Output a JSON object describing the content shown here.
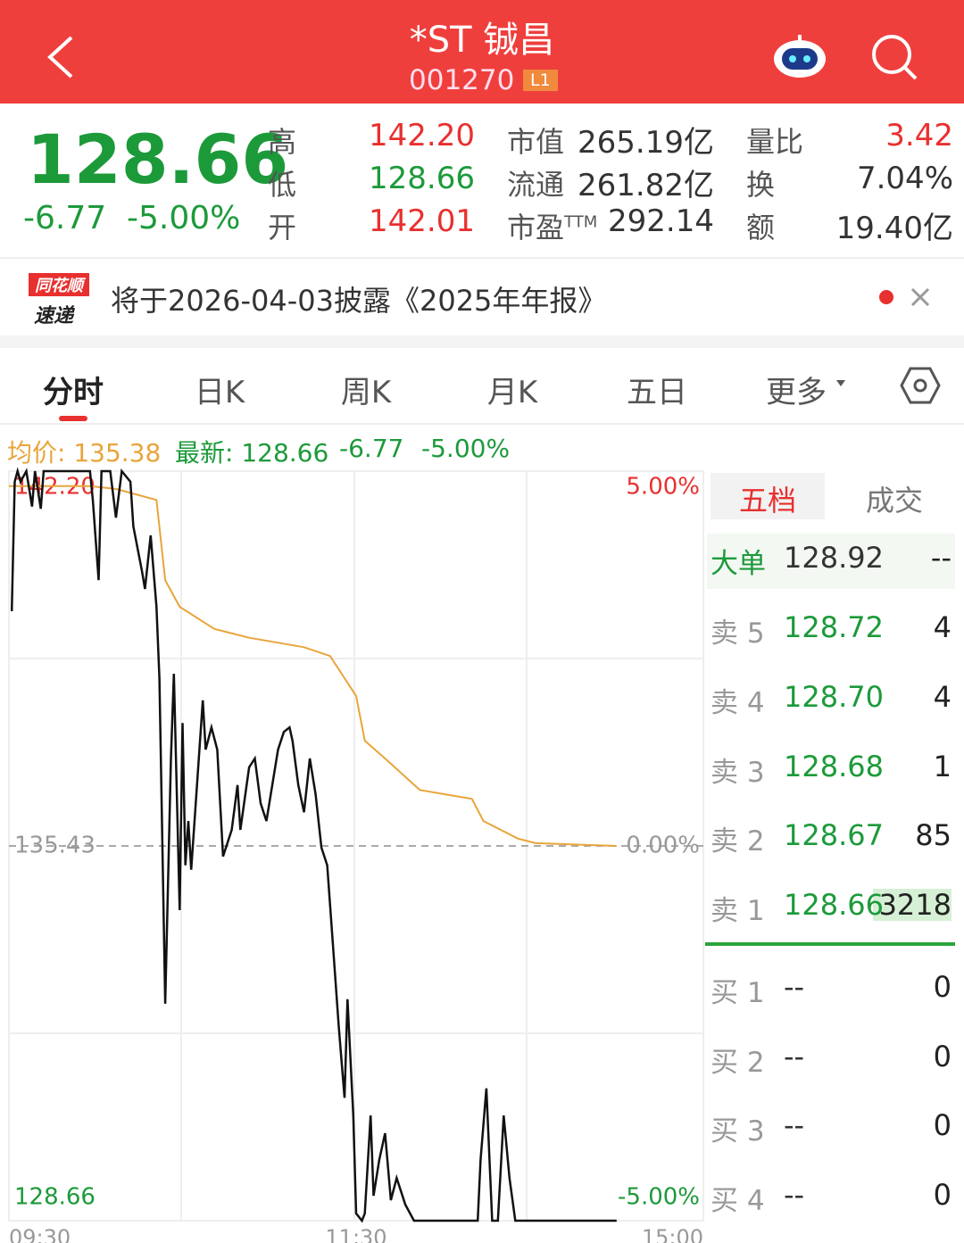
{
  "header": {
    "title": "*ST 铖昌",
    "code": "001270",
    "badge": "L1"
  },
  "quote": {
    "price": "128.66",
    "change": "-6.77",
    "change_pct": "-5.00%",
    "stats": [
      [
        {
          "label": "高",
          "value": "142.20"
        },
        {
          "label": "市值",
          "value": "265.19亿"
        },
        {
          "label": "量比",
          "value": "3.42"
        }
      ],
      [
        {
          "label": "低",
          "value": "128.66"
        },
        {
          "label": "流通",
          "value": "261.82亿"
        },
        {
          "label": "换",
          "value": "7.04%"
        }
      ],
      [
        {
          "label": "开",
          "value": "142.01"
        },
        {
          "label": "市盈",
          "label_sup": "TTM",
          "value": "292.14"
        },
        {
          "label": "额",
          "value": "19.40亿"
        }
      ]
    ]
  },
  "notice": {
    "logo_top": "同花顺",
    "logo_bottom": "速递",
    "text": "将于2026-04-03披露《2025年年报》"
  },
  "tabs": [
    "分时",
    "日K",
    "周K",
    "月K",
    "五日",
    "更多"
  ],
  "chart_info": {
    "avg": "均价: 135.38",
    "latest": "最新: 128.66",
    "change": "-6.77",
    "change_pct": "-5.00%"
  },
  "chart_data": {
    "type": "line",
    "xlim": [
      0,
      240
    ],
    "xticks": [
      {
        "value": 0,
        "label": "09:30"
      },
      {
        "value": 120,
        "label": "11:30"
      },
      {
        "value": 240,
        "label": "15:00"
      }
    ],
    "ylim": [
      128.66,
      142.2
    ],
    "yticks": [
      128.66,
      135.43,
      {
        "value": 142.2,
        "label": "142.20"
      }
    ],
    "y2lim": [
      -5,
      5
    ],
    "y2ticks": [
      {
        "value": -5,
        "label": "-5.00%"
      },
      {
        "value": 0,
        "label": "0.00%"
      },
      {
        "value": 5,
        "label": "5.00%"
      }
    ],
    "series": [
      {
        "color": "#111111",
        "x": [
          1,
          2,
          3,
          4,
          6,
          8,
          9,
          11,
          12,
          28,
          29,
          31,
          32,
          35,
          37,
          39,
          42,
          43,
          46,
          47,
          49,
          51,
          52,
          54,
          56,
          57,
          59,
          60,
          61,
          62,
          63,
          65,
          67,
          68,
          70,
          72,
          74,
          77,
          79,
          80,
          83,
          85,
          87,
          89,
          93,
          95,
          97,
          98,
          100,
          102,
          104,
          106,
          108,
          110,
          112,
          114,
          116,
          117,
          119,
          120,
          122,
          123,
          125,
          126,
          128,
          130,
          132,
          134,
          137,
          140,
          162,
          163,
          165,
          167,
          169,
          171,
          173,
          175,
          210
        ],
        "values": [
          139.67,
          142.01,
          142.2,
          142.01,
          142.2,
          141.56,
          142.2,
          141.52,
          142.2,
          142.2,
          141.68,
          140.23,
          142.2,
          142.2,
          141.36,
          142.2,
          142.01,
          141.2,
          140.39,
          140.07,
          141.04,
          139.75,
          138.46,
          132.58,
          137.01,
          138.54,
          134.27,
          137.65,
          135.08,
          135.88,
          135.0,
          136.53,
          138.06,
          137.17,
          137.57,
          137.17,
          135.24,
          135.72,
          136.53,
          135.72,
          136.85,
          137.01,
          136.2,
          135.88,
          137.17,
          137.49,
          137.57,
          137.33,
          136.53,
          136.04,
          137.01,
          136.36,
          135.4,
          135.08,
          133.62,
          132.17,
          130.88,
          132.66,
          130.56,
          128.79,
          128.66,
          128.79,
          130.56,
          129.11,
          129.76,
          130.24,
          129.03,
          129.43,
          128.95,
          128.66,
          128.66,
          129.76,
          131.05,
          128.66,
          128.66,
          130.56,
          129.43,
          128.66,
          128.66
        ]
      },
      {
        "color": "#e8a53c",
        "x": [
          0,
          28,
          37,
          51,
          54,
          59,
          71,
          83,
          102,
          111,
          116,
          120,
          123,
          130,
          142,
          160,
          164,
          176,
          182,
          210
        ],
        "values": [
          141.93,
          141.93,
          141.88,
          141.68,
          140.23,
          139.75,
          139.35,
          139.19,
          139.02,
          138.86,
          138.46,
          138.14,
          137.33,
          137.01,
          136.44,
          136.28,
          135.88,
          135.56,
          135.48,
          135.43
        ]
      }
    ]
  },
  "order_book": {
    "tabs": [
      "五档",
      "成交"
    ],
    "big": {
      "label": "大单",
      "price": "128.92",
      "volume": "--"
    },
    "asks": [
      {
        "label": "卖 5",
        "price": "128.72",
        "volume": "4"
      },
      {
        "label": "卖 4",
        "price": "128.70",
        "volume": "4"
      },
      {
        "label": "卖 3",
        "price": "128.68",
        "volume": "1"
      },
      {
        "label": "卖 2",
        "price": "128.67",
        "volume": "85"
      },
      {
        "label": "卖 1",
        "price": "128.66",
        "volume": "3218"
      }
    ],
    "bids": [
      {
        "label": "买 1",
        "price": "--",
        "volume": "0"
      },
      {
        "label": "买 2",
        "price": "--",
        "volume": "0"
      },
      {
        "label": "买 3",
        "price": "--",
        "volume": "0"
      },
      {
        "label": "买 4",
        "price": "--",
        "volume": "0"
      }
    ]
  }
}
